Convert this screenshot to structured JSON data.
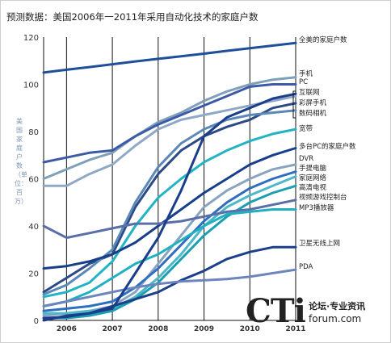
{
  "title": "预测数据：美国2006年一2011年采用自动化技术的家庭户数",
  "watermark": {
    "big": "CTi",
    "chinese": "论坛·专业资讯",
    "url": "forum.com"
  },
  "chart_data": {
    "type": "line",
    "title": "预测数据：美国2006年一2011年采用自动化技术的家庭户数",
    "ylabel": "美国家庭户数（单位：百万）",
    "xlabel": "",
    "x_ticks": [
      "2006",
      "2007",
      "2008",
      "2009",
      "2010",
      "2011"
    ],
    "y_ticks": [
      0,
      20,
      40,
      60,
      80,
      100,
      120
    ],
    "ylim": [
      0,
      120
    ],
    "grid": "vertical lines at years",
    "legend": "labels at right end of lines",
    "x": [
      2005.5,
      2006,
      2006.5,
      2007,
      2007.5,
      2008,
      2008.5,
      2009,
      2009.5,
      2010,
      2010.5,
      2011
    ],
    "series": [
      {
        "name": "全美的家庭户数",
        "color": "#1f4e9a",
        "values": [
          105,
          106.2,
          107.3,
          108.5,
          109.7,
          110.8,
          111.9,
          113,
          114.2,
          115.3,
          116.4,
          117.5
        ]
      },
      {
        "name": "手机",
        "color": "#7fa0b8",
        "values": [
          60,
          64,
          68,
          71,
          78,
          84,
          88,
          93,
          97,
          100,
          102,
          103
        ]
      },
      {
        "name": "PC",
        "color": "#3d5aa8",
        "values": [
          67,
          69,
          71,
          72,
          78,
          83,
          87,
          91,
          95,
          99,
          100,
          100
        ]
      },
      {
        "name": "互联网",
        "color": "#8fa8c6",
        "values": [
          57,
          57,
          62,
          66,
          74,
          81,
          85,
          87,
          89,
          91,
          93,
          95
        ]
      },
      {
        "name": "彩屏手机",
        "color": "#2b4a86",
        "values": [
          12,
          18,
          24,
          28,
          48,
          62,
          72,
          78,
          82,
          85,
          90,
          92
        ]
      },
      {
        "name": "数码相机",
        "color": "#5c88b8",
        "values": [
          11,
          15,
          22,
          30,
          50,
          65,
          75,
          81,
          85,
          87,
          88,
          89
        ]
      },
      {
        "name": "宽带",
        "color": "#22b3c4",
        "values": [
          10,
          12,
          16,
          25,
          40,
          52,
          60,
          67,
          72,
          76,
          79,
          81
        ]
      },
      {
        "name": "多台PC的家庭户数",
        "color": "#183f8a",
        "values": [
          22,
          23,
          25,
          28,
          33,
          40,
          47,
          54,
          60,
          66,
          70,
          73
        ]
      },
      {
        "name": "DVR",
        "color": "#8aa4bf",
        "values": [
          2,
          3,
          4,
          6,
          12,
          24,
          36,
          48,
          55,
          60,
          64,
          66
        ]
      },
      {
        "name": "手提电脑",
        "color": "#2f6fbf",
        "values": [
          4,
          5,
          6,
          8,
          14,
          22,
          32,
          42,
          50,
          56,
          60,
          63
        ]
      },
      {
        "name": "家庭网络",
        "color": "#4cb8c8",
        "values": [
          3,
          3,
          4,
          5,
          10,
          18,
          28,
          40,
          48,
          53,
          57,
          61
        ]
      },
      {
        "name": "高清电视",
        "color": "#1d9fb2",
        "values": [
          1,
          1,
          2,
          4,
          9,
          16,
          26,
          36,
          44,
          50,
          54,
          57
        ]
      },
      {
        "name": "视频游戏控制台",
        "color": "#5a6eaa",
        "values": [
          40,
          35,
          37,
          39,
          41,
          41,
          42,
          44,
          46,
          47,
          49,
          51
        ]
      },
      {
        "name": "MP3播放器",
        "color": "#1fb0c2",
        "values": [
          6,
          8,
          12,
          18,
          24,
          28,
          34,
          40,
          45,
          46,
          47,
          47
        ]
      },
      {
        "name": "卫星无线上网",
        "color": "#1c3f8a",
        "values": [
          1,
          1.5,
          3,
          6,
          9,
          12,
          17,
          21,
          26,
          29,
          31,
          31
        ]
      },
      {
        "name": "PDA",
        "color": "#6d85bf",
        "values": [
          6,
          8,
          10,
          12,
          14,
          15.5,
          16.5,
          17,
          17.5,
          18.5,
          20,
          21.5
        ]
      },
      {
        "name": "",
        "color": "#1b3d8c",
        "values": [
          0,
          2,
          3,
          5,
          20,
          35,
          55,
          78,
          86,
          90,
          94,
          96
        ]
      }
    ],
    "label_offsets_note": "labels shown at right side"
  }
}
